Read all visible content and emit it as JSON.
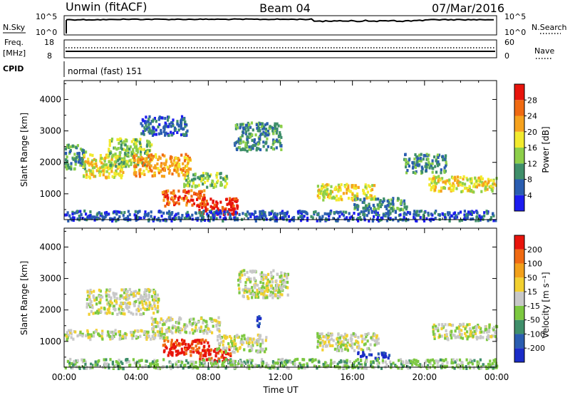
{
  "header": {
    "station": "Unwin (fitACF)",
    "beam": "Beam 04",
    "date": "07/Mar/2016"
  },
  "status_panels": {
    "nsky_label": "N.Sky",
    "nsky_ticks": [
      "10^5",
      "10^0"
    ],
    "nsearch_label": "N.Search",
    "nsearch_ticks": [
      "10^5",
      "10^0"
    ],
    "freq_label": "Freq.",
    "freq_unit": "[MHz]",
    "freq_ticks": [
      "18",
      "8"
    ],
    "nave_label": "Nave",
    "nave_ticks": [
      "60",
      "0"
    ],
    "cpid_label": "CPID",
    "cpid_value": "normal (fast) 151"
  },
  "chart_data": [
    {
      "type": "heatmap",
      "panel": "power",
      "ylabel": "Slant Range [km]",
      "colorbar_label": "Power [dB]",
      "colorbar_ticks": [
        "4",
        "8",
        "12",
        "16",
        "20",
        "24",
        "28"
      ],
      "colorbar_colors": [
        "#1c1cf0",
        "#2a5db0",
        "#3f8f6a",
        "#8dcf4a",
        "#f2ea2e",
        "#f6a21e",
        "#f06a12",
        "#e8140c"
      ],
      "ytick_labels": [
        "1000",
        "2000",
        "3000",
        "4000"
      ],
      "y_ticks": [
        1000,
        2000,
        3000,
        4000
      ],
      "ylim": [
        180,
        4600
      ],
      "xlim": [
        0,
        24
      ],
      "x_ticks": [
        0,
        4,
        8,
        12,
        16,
        20,
        24
      ],
      "xtick_labels": [
        "00:00",
        "04:00",
        "08:00",
        "12:00",
        "16:00",
        "20:00",
        "00:00"
      ],
      "echo_regions": [
        {
          "t0": 0.0,
          "t1": 1.2,
          "r0": 1800,
          "r1": 2600,
          "level": 2
        },
        {
          "t0": 1.0,
          "t1": 3.4,
          "r0": 1550,
          "r1": 2300,
          "level": 4
        },
        {
          "t0": 2.4,
          "t1": 4.8,
          "r0": 1900,
          "r1": 2800,
          "level": 3
        },
        {
          "t0": 3.8,
          "t1": 7.0,
          "r0": 1600,
          "r1": 2300,
          "level": 5
        },
        {
          "t0": 6.6,
          "t1": 9.0,
          "r0": 1250,
          "r1": 1700,
          "level": 3
        },
        {
          "t0": 5.4,
          "t1": 7.8,
          "r0": 650,
          "r1": 1150,
          "level": 6
        },
        {
          "t0": 7.4,
          "t1": 9.6,
          "r0": 380,
          "r1": 900,
          "level": 7
        },
        {
          "t0": 4.2,
          "t1": 6.8,
          "r0": 2900,
          "r1": 3500,
          "level": 1
        },
        {
          "t0": 9.4,
          "t1": 12.0,
          "r0": 2400,
          "r1": 3300,
          "level": 2
        },
        {
          "t0": 14.0,
          "t1": 17.2,
          "r0": 850,
          "r1": 1350,
          "level": 4
        },
        {
          "t0": 16.0,
          "t1": 19.0,
          "r0": 500,
          "r1": 900,
          "level": 2
        },
        {
          "t0": 20.2,
          "t1": 24.0,
          "r0": 1100,
          "r1": 1600,
          "level": 4
        },
        {
          "t0": 18.8,
          "t1": 21.2,
          "r0": 1700,
          "r1": 2300,
          "level": 2
        },
        {
          "t0": 0.0,
          "t1": 24.0,
          "r0": 180,
          "r1": 500,
          "level": 1
        }
      ]
    },
    {
      "type": "heatmap",
      "panel": "velocity",
      "ylabel": "Slant Range [km]",
      "colorbar_label": "Velocity [m s⁻¹]",
      "colorbar_ticks": [
        "200",
        "100",
        "50",
        "15",
        "-15",
        "-50",
        "-100",
        "-200"
      ],
      "colorbar_colors": [
        "#1a2cc8",
        "#2a5db0",
        "#3f8f6a",
        "#7cc840",
        "#c8c8c8",
        "#f2d030",
        "#f2a01a",
        "#f06a12",
        "#e8140c"
      ],
      "ytick_labels": [
        "1000",
        "2000",
        "3000",
        "4000"
      ],
      "y_ticks": [
        1000,
        2000,
        3000,
        4000
      ],
      "ylim": [
        180,
        4600
      ],
      "xlim": [
        0,
        24
      ],
      "x_ticks": [
        0,
        4,
        8,
        12,
        16,
        20,
        24
      ],
      "xtick_labels": [
        "00:00",
        "04:00",
        "08:00",
        "12:00",
        "16:00",
        "20:00",
        "00:00"
      ],
      "xlabel": "Time UT",
      "echo_regions": [
        {
          "t0": 0.0,
          "t1": 5.8,
          "r0": 1100,
          "r1": 1400,
          "level": 4
        },
        {
          "t0": 1.2,
          "t1": 5.2,
          "r0": 1900,
          "r1": 2700,
          "level": 4
        },
        {
          "t0": 4.8,
          "t1": 8.6,
          "r0": 1300,
          "r1": 1800,
          "level": 4
        },
        {
          "t0": 5.4,
          "t1": 8.0,
          "r0": 600,
          "r1": 1100,
          "level": 8
        },
        {
          "t0": 7.4,
          "t1": 9.2,
          "r0": 400,
          "r1": 800,
          "level": 8
        },
        {
          "t0": 8.4,
          "t1": 11.2,
          "r0": 700,
          "r1": 1250,
          "level": 4
        },
        {
          "t0": 9.6,
          "t1": 12.4,
          "r0": 2400,
          "r1": 3300,
          "level": 4
        },
        {
          "t0": 14.0,
          "t1": 17.4,
          "r0": 750,
          "r1": 1300,
          "level": 4
        },
        {
          "t0": 16.2,
          "t1": 18.0,
          "r0": 500,
          "r1": 700,
          "level": 0
        },
        {
          "t0": 20.4,
          "t1": 24.0,
          "r0": 1100,
          "r1": 1600,
          "level": 4
        },
        {
          "t0": 0.0,
          "t1": 24.0,
          "r0": 180,
          "r1": 480,
          "level": 3
        },
        {
          "t0": 10.6,
          "t1": 10.9,
          "r0": 1500,
          "r1": 1850,
          "level": 0
        }
      ]
    }
  ]
}
